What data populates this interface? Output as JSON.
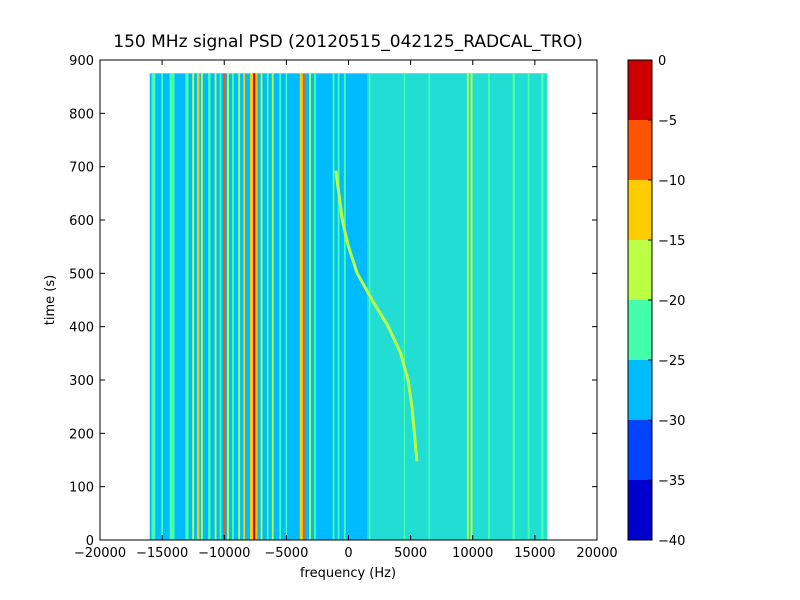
{
  "chart_data": {
    "type": "heatmap",
    "title": "150 MHz signal PSD (20120515_042125_RADCAL_TRO)",
    "xlabel": "frequency (Hz)",
    "ylabel": "time (s)",
    "xlim": [
      -20000,
      20000
    ],
    "ylim": [
      0,
      900
    ],
    "xticks": [
      -20000,
      -15000,
      -10000,
      -5000,
      0,
      5000,
      10000,
      15000,
      20000
    ],
    "yticks": [
      0,
      100,
      200,
      300,
      400,
      500,
      600,
      700,
      800,
      900
    ],
    "data_extent": {
      "x": [
        -16000,
        16000
      ],
      "y": [
        0,
        875
      ]
    },
    "colorbar": {
      "ticks": [
        0,
        -5,
        -10,
        -15,
        -20,
        -25,
        -30,
        -35,
        -40
      ],
      "range": [
        -40,
        0
      ],
      "levels": [
        {
          "from": -40,
          "to": -35,
          "color": "#0000cc"
        },
        {
          "from": -35,
          "to": -30,
          "color": "#0044ff"
        },
        {
          "from": -30,
          "to": -25,
          "color": "#00bbff"
        },
        {
          "from": -25,
          "to": -20,
          "color": "#44ffaa"
        },
        {
          "from": -20,
          "to": -15,
          "color": "#bbff44"
        },
        {
          "from": -15,
          "to": -10,
          "color": "#ffcc00"
        },
        {
          "from": -10,
          "to": -5,
          "color": "#ff5500"
        },
        {
          "from": -5,
          "to": 0,
          "color": "#cc0000"
        }
      ]
    },
    "background_psd_db": -27,
    "noise_band": {
      "x": [
        1500,
        16000
      ],
      "psd_db": -24
    },
    "spectral_lines": [
      {
        "x": -15700,
        "width": 300,
        "psd_db": -22
      },
      {
        "x": -15000,
        "width": 150,
        "psd_db": -22
      },
      {
        "x": -14200,
        "width": 400,
        "psd_db": -22
      },
      {
        "x": -13000,
        "width": 250,
        "psd_db": -22
      },
      {
        "x": -12500,
        "width": 150,
        "psd_db": -17
      },
      {
        "x": -12100,
        "width": 200,
        "psd_db": -12
      },
      {
        "x": -11800,
        "width": 150,
        "psd_db": -17
      },
      {
        "x": -11200,
        "width": 200,
        "psd_db": -22
      },
      {
        "x": -10700,
        "width": 150,
        "psd_db": -17
      },
      {
        "x": -10300,
        "width": 150,
        "psd_db": -22
      },
      {
        "x": -10000,
        "width": 200,
        "psd_db": -8
      },
      {
        "x": -9700,
        "width": 150,
        "psd_db": -17
      },
      {
        "x": -9300,
        "width": 150,
        "psd_db": -22
      },
      {
        "x": -8800,
        "width": 150,
        "psd_db": -17
      },
      {
        "x": -8400,
        "width": 150,
        "psd_db": -12
      },
      {
        "x": -7800,
        "width": 250,
        "psd_db": -12
      },
      {
        "x": -7600,
        "width": 150,
        "psd_db": -3
      },
      {
        "x": -7400,
        "width": 150,
        "psd_db": -12
      },
      {
        "x": -7000,
        "width": 150,
        "psd_db": -17
      },
      {
        "x": -6500,
        "width": 150,
        "psd_db": -22
      },
      {
        "x": -6100,
        "width": 150,
        "psd_db": -17
      },
      {
        "x": -5500,
        "width": 150,
        "psd_db": -22
      },
      {
        "x": -5000,
        "width": 120,
        "psd_db": -22
      },
      {
        "x": -3800,
        "width": 250,
        "psd_db": -12
      },
      {
        "x": -3600,
        "width": 150,
        "psd_db": -8
      },
      {
        "x": -3100,
        "width": 150,
        "psd_db": -17
      },
      {
        "x": -2700,
        "width": 150,
        "psd_db": -22
      },
      {
        "x": -1200,
        "width": 150,
        "psd_db": -22
      },
      {
        "x": -800,
        "width": 150,
        "psd_db": -22
      },
      {
        "x": -300,
        "width": 150,
        "psd_db": -22
      },
      {
        "x": 1700,
        "width": 120,
        "psd_db": -22
      },
      {
        "x": 4500,
        "width": 120,
        "psd_db": -22
      },
      {
        "x": 6500,
        "width": 120,
        "psd_db": -22
      },
      {
        "x": 9600,
        "width": 150,
        "psd_db": -17
      },
      {
        "x": 9900,
        "width": 150,
        "psd_db": -17
      },
      {
        "x": 11300,
        "width": 150,
        "psd_db": -22
      },
      {
        "x": 13300,
        "width": 200,
        "psd_db": -22
      },
      {
        "x": 14500,
        "width": 150,
        "psd_db": -22
      },
      {
        "x": 15600,
        "width": 200,
        "psd_db": -22
      }
    ],
    "drifting_signal": {
      "psd_db": -17,
      "points": [
        {
          "time": 690,
          "freq": -1000
        },
        {
          "time": 600,
          "freq": -500
        },
        {
          "time": 550,
          "freq": 0
        },
        {
          "time": 500,
          "freq": 700
        },
        {
          "time": 450,
          "freq": 1900
        },
        {
          "time": 400,
          "freq": 3200
        },
        {
          "time": 350,
          "freq": 4200
        },
        {
          "time": 300,
          "freq": 4800
        },
        {
          "time": 250,
          "freq": 5100
        },
        {
          "time": 200,
          "freq": 5300
        },
        {
          "time": 150,
          "freq": 5500
        }
      ]
    }
  }
}
